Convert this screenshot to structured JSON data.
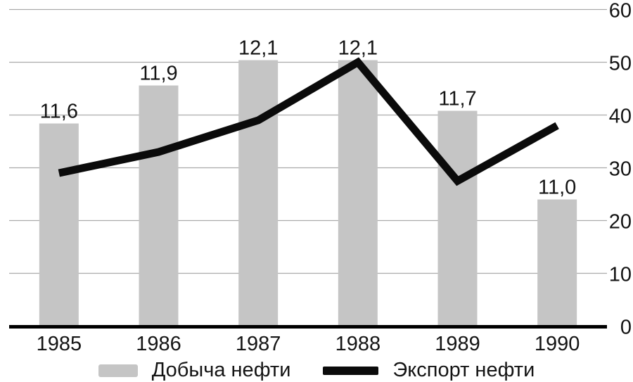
{
  "chart_data": {
    "type": "combo-bar-line",
    "title": "",
    "categories": [
      "1985",
      "1986",
      "1987",
      "1988",
      "1989",
      "1990"
    ],
    "series": [
      {
        "name": "Добыча нефти",
        "type": "bar",
        "values": [
          11.6,
          11.9,
          12.1,
          12.1,
          11.7,
          11.0
        ],
        "value_labels": [
          "11,6",
          "11,9",
          "12,1",
          "12,1",
          "11,7",
          "11,0"
        ],
        "axis": "hidden-left",
        "hidden_axis_range": [
          10,
          12.5
        ],
        "color": "#c5c5c5"
      },
      {
        "name": "Экспорт нефти",
        "type": "line",
        "values": [
          29,
          33,
          39,
          50,
          27.5,
          38
        ],
        "axis": "right",
        "color": "#0b0b0b"
      }
    ],
    "right_axis": {
      "ticks": [
        "0",
        "10",
        "20",
        "30",
        "40",
        "50",
        "60"
      ],
      "tick_values": [
        0,
        10,
        20,
        30,
        40,
        50,
        60
      ],
      "range": [
        0,
        60
      ]
    },
    "grid": true,
    "grid_color": "#ababab",
    "axis_line_color": "#000000",
    "label_color": "#141414",
    "legend_position": "bottom"
  },
  "legend": {
    "items": [
      {
        "label": "Добыча нефти",
        "swatch": "bar"
      },
      {
        "label": "Экспорт нефти",
        "swatch": "line"
      }
    ]
  }
}
